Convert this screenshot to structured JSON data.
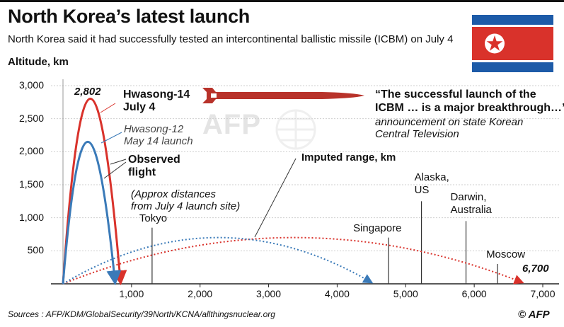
{
  "header": {
    "title": "North Korea’s latest launch",
    "subtitle": "North Korea said it had successfully tested an intercontinental ballistic missile (ICBM) on July 4",
    "axis_title": "Altitude, km"
  },
  "chart_data": {
    "type": "line",
    "xlim": [
      0,
      7000
    ],
    "ylim": [
      0,
      3000
    ],
    "x_ticks": [
      "1,000",
      "2,000",
      "3,000",
      "4,000",
      "5,000",
      "6,000",
      "7,000"
    ],
    "y_ticks": [
      "3,000",
      "2,500",
      "2,000",
      "1,500",
      "1,000",
      "500"
    ],
    "x_tick_values": [
      1000,
      2000,
      3000,
      4000,
      5000,
      6000,
      7000
    ],
    "y_tick_values": [
      3000,
      2500,
      2000,
      1500,
      1000,
      500
    ],
    "series": [
      {
        "name": "Hwasong-14 July 4",
        "kind": "observed",
        "color": "#d9322b",
        "range": 840,
        "apex": 2802
      },
      {
        "name": "Hwasong-12 May 14 launch",
        "kind": "observed",
        "color": "#3a7ab8",
        "range": 760,
        "apex": 2150
      },
      {
        "kind": "imputed",
        "color": "#d9322b",
        "range": 6700,
        "apex": 700
      },
      {
        "kind": "imputed",
        "color": "#3a7ab8",
        "range": 4500,
        "apex": 700
      }
    ],
    "cities": [
      {
        "name": "Tokyo",
        "x": 1300,
        "top": 850
      },
      {
        "name": "Singapore",
        "x": 4750,
        "top": 700
      },
      {
        "name": "Alaska, US",
        "x": 5230,
        "top": 1250
      },
      {
        "name": "Darwin, Australia",
        "x": 5880,
        "top": 950
      },
      {
        "name": "Moscow",
        "x": 6340,
        "top": 300
      }
    ],
    "labels": {
      "apex_value": "2,802",
      "range_value": "6,700",
      "hwasong14_line1": "Hwasong-14",
      "hwasong14_line2": "July 4",
      "hwasong12_line1": "Hwasong-12",
      "hwasong12_line2": "May 14 launch",
      "observed_line1": "Observed",
      "observed_line2": "flight",
      "approx_line1": "(Approx distances",
      "approx_line2": "from July 4 launch site)",
      "imputed_range": "Imputed range, km",
      "quote_line1": "“The successful launch of the",
      "quote_line2": "ICBM … is a major breakthrough…”",
      "attrib_line1": "announcement on state Korean",
      "attrib_line2": "Central Television"
    }
  },
  "footer": {
    "sources": "Sources : AFP/KDM/GlobalSecurity/39North/KCNA/allthingsnuclear.org",
    "credit": "© AFP"
  },
  "watermark": "AFP",
  "colors": {
    "red": "#d9322b",
    "blue": "#3a7ab8",
    "missile": "#b8322a",
    "flag_blue": "#1d5ba8",
    "flag_red": "#d9322b"
  }
}
